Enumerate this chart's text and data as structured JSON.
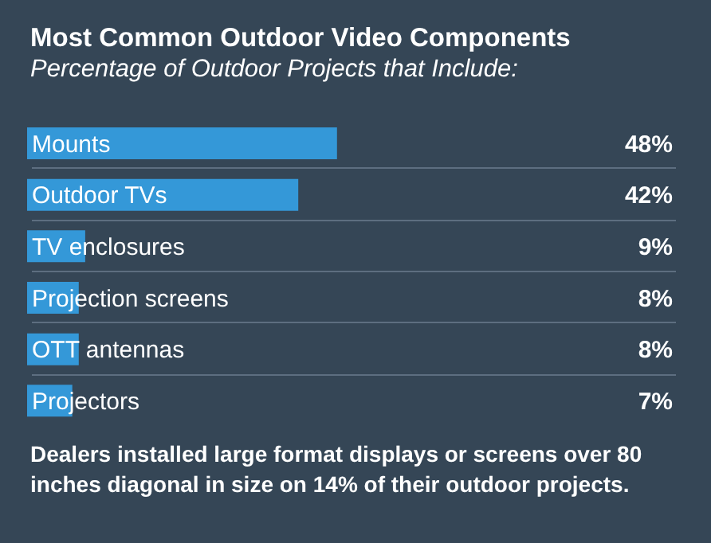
{
  "chart_data": {
    "type": "bar",
    "orientation": "horizontal",
    "title": "Most Common Outdoor Video Components",
    "subtitle": "Percentage of Outdoor Projects that Include:",
    "categories": [
      "Mounts",
      "Outdoor TVs",
      "TV enclosures",
      "Projection screens",
      "OTT antennas",
      "Projectors"
    ],
    "values": [
      48,
      42,
      9,
      8,
      8,
      7
    ],
    "value_labels": [
      "48%",
      "42%",
      "9%",
      "8%",
      "8%",
      "7%"
    ],
    "color": "#3498d8",
    "xlim": [
      0,
      100
    ],
    "grid": false,
    "annotations": [
      "Dealers installed large format displays or screens over 80 inches diagonal in size on 14% of their outdoor projects."
    ]
  }
}
